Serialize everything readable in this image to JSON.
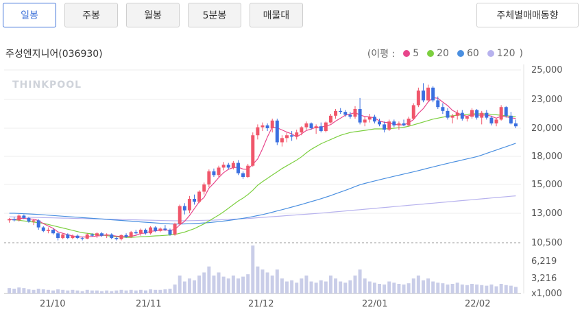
{
  "tabs": [
    {
      "label": "일봉",
      "active": true
    },
    {
      "label": "주봉",
      "active": false
    },
    {
      "label": "월봉",
      "active": false
    },
    {
      "label": "5분봉",
      "active": false
    },
    {
      "label": "매물대",
      "active": false
    }
  ],
  "right_button": "주체별매매동향",
  "stock_title": "주성엔지니어(036930)",
  "legend": {
    "prefix": "(이평 :",
    "suffix": ")",
    "items": [
      {
        "label": "5",
        "color": "#e8458b"
      },
      {
        "label": "20",
        "color": "#7ccf3f"
      },
      {
        "label": "60",
        "color": "#4a8fe0"
      },
      {
        "label": "120",
        "color": "#b7b2ee"
      }
    ]
  },
  "watermark": "THINKPOOL",
  "chart_data": {
    "type": "candlestick",
    "price_axis": {
      "ticks": [
        "25,000",
        "23,000",
        "20,000",
        "18,000",
        "15,000",
        "13,000",
        "10,500"
      ],
      "ylim": [
        10500,
        25000
      ]
    },
    "volume_axis": {
      "ticks": [
        "6,219",
        "3,216",
        "x1,000"
      ]
    },
    "x_ticks": [
      "21/10",
      "21/11",
      "21/12",
      "22/01",
      "22/02"
    ],
    "colors": {
      "up": "#f0566a",
      "down": "#3a6fe0",
      "ma5": "#e8458b",
      "ma20": "#7ccf3f",
      "ma60": "#4a8fe0",
      "ma120": "#b7b2ee",
      "volume": "#c9cde8"
    },
    "candles": [
      [
        12400,
        12600,
        12200,
        12500
      ],
      [
        12500,
        12700,
        12300,
        12400
      ],
      [
        12400,
        12900,
        12300,
        12800
      ],
      [
        12800,
        12900,
        12500,
        12600
      ],
      [
        12600,
        12700,
        12200,
        12300
      ],
      [
        12300,
        12500,
        12000,
        12400
      ],
      [
        12400,
        12500,
        11600,
        11800
      ],
      [
        11800,
        11900,
        11400,
        11500
      ],
      [
        11500,
        11800,
        11300,
        11600
      ],
      [
        11600,
        11700,
        11200,
        11300
      ],
      [
        11300,
        11400,
        10700,
        10900
      ],
      [
        10900,
        11300,
        10800,
        11200
      ],
      [
        11200,
        11300,
        10800,
        10900
      ],
      [
        10900,
        11200,
        10800,
        11100
      ],
      [
        11100,
        11200,
        10800,
        10900
      ],
      [
        10900,
        11000,
        10700,
        10850
      ],
      [
        10850,
        11300,
        10800,
        11200
      ],
      [
        11200,
        11300,
        11000,
        11100
      ],
      [
        11100,
        11400,
        10900,
        11300
      ],
      [
        11300,
        11400,
        11000,
        11100
      ],
      [
        11100,
        11300,
        10900,
        11200
      ],
      [
        11200,
        11300,
        10800,
        10900
      ],
      [
        10900,
        11000,
        10700,
        10800
      ],
      [
        10800,
        11200,
        10700,
        11150
      ],
      [
        11150,
        11300,
        10900,
        11000
      ],
      [
        11000,
        11500,
        10900,
        11400
      ],
      [
        11400,
        11600,
        11200,
        11300
      ],
      [
        11300,
        11700,
        11100,
        11600
      ],
      [
        11600,
        11700,
        11200,
        11300
      ],
      [
        11300,
        11900,
        11200,
        11800
      ],
      [
        11800,
        11900,
        11400,
        11500
      ],
      [
        11500,
        11800,
        11400,
        11700
      ],
      [
        11700,
        12000,
        11500,
        11600
      ],
      [
        11600,
        11700,
        11100,
        11200
      ],
      [
        11200,
        12200,
        11100,
        12100
      ],
      [
        12100,
        13600,
        12000,
        13500
      ],
      [
        13500,
        13700,
        12900,
        13200
      ],
      [
        13200,
        14200,
        13000,
        14000
      ],
      [
        14000,
        14300,
        13600,
        13800
      ],
      [
        13800,
        14600,
        13700,
        14500
      ],
      [
        14500,
        15200,
        14300,
        15000
      ],
      [
        15000,
        16600,
        14800,
        16400
      ],
      [
        16400,
        16700,
        15800,
        16000
      ],
      [
        16000,
        17000,
        15800,
        16800
      ],
      [
        16800,
        17400,
        16500,
        17100
      ],
      [
        17100,
        17300,
        16600,
        16800
      ],
      [
        16800,
        17500,
        16600,
        17300
      ],
      [
        17300,
        17600,
        16000,
        16200
      ],
      [
        16200,
        16400,
        15600,
        15800
      ],
      [
        15800,
        17200,
        15700,
        17000
      ],
      [
        17000,
        19700,
        16900,
        19500
      ],
      [
        19500,
        20400,
        19200,
        20100
      ],
      [
        20100,
        20600,
        19800,
        20300
      ],
      [
        20300,
        20500,
        19800,
        20000
      ],
      [
        20000,
        21000,
        19700,
        20800
      ],
      [
        20800,
        21000,
        18800,
        19000
      ],
      [
        19000,
        19500,
        18700,
        19300
      ],
      [
        19300,
        19700,
        19000,
        19500
      ],
      [
        19500,
        19800,
        19100,
        19400
      ],
      [
        19400,
        19900,
        19200,
        19700
      ],
      [
        19700,
        20200,
        19500,
        20100
      ],
      [
        20100,
        20700,
        19900,
        20500
      ],
      [
        20500,
        20600,
        19900,
        20000
      ],
      [
        20000,
        20400,
        19600,
        20200
      ],
      [
        20200,
        20600,
        19700,
        19800
      ],
      [
        19800,
        20700,
        19700,
        20600
      ],
      [
        20600,
        21500,
        20500,
        21300
      ],
      [
        21300,
        22000,
        21000,
        21800
      ],
      [
        21800,
        22100,
        21500,
        21700
      ],
      [
        21700,
        21900,
        21200,
        21400
      ],
      [
        21400,
        21700,
        21000,
        21200
      ],
      [
        21200,
        22300,
        21000,
        22000
      ],
      [
        22000,
        23100,
        20400,
        20600
      ],
      [
        20600,
        21200,
        20200,
        20900
      ],
      [
        20900,
        21500,
        20600,
        21200
      ],
      [
        21200,
        21400,
        20500,
        20700
      ],
      [
        20700,
        21000,
        20200,
        20400
      ],
      [
        20400,
        20700,
        19700,
        19900
      ],
      [
        19900,
        20900,
        19800,
        20700
      ],
      [
        20700,
        20900,
        20100,
        20300
      ],
      [
        20300,
        20700,
        19900,
        20500
      ],
      [
        20500,
        20900,
        20200,
        20300
      ],
      [
        20300,
        21200,
        20200,
        21000
      ],
      [
        21000,
        22600,
        20900,
        22400
      ],
      [
        22400,
        23800,
        22200,
        23600
      ],
      [
        23600,
        24100,
        22700,
        22900
      ],
      [
        22900,
        24000,
        22700,
        23800
      ],
      [
        23800,
        23900,
        22700,
        22900
      ],
      [
        22900,
        23200,
        22000,
        22200
      ],
      [
        22200,
        22600,
        21500,
        21800
      ],
      [
        21800,
        22100,
        20900,
        21100
      ],
      [
        21100,
        21500,
        20500,
        21300
      ],
      [
        21300,
        21900,
        20900,
        21600
      ],
      [
        21600,
        21900,
        20800,
        21000
      ],
      [
        21000,
        21300,
        20700,
        21200
      ],
      [
        21200,
        22100,
        21000,
        21900
      ],
      [
        21900,
        22000,
        20900,
        21100
      ],
      [
        21100,
        21800,
        20400,
        21600
      ],
      [
        21600,
        21900,
        20900,
        21100
      ],
      [
        21100,
        21300,
        20300,
        20500
      ],
      [
        20500,
        21100,
        20200,
        20900
      ],
      [
        20900,
        22400,
        20800,
        22200
      ],
      [
        22200,
        22300,
        21100,
        21300
      ],
      [
        21300,
        21700,
        20400,
        20500
      ],
      [
        20500,
        20900,
        20000,
        20200
      ]
    ],
    "volume": [
      0.9,
      0.8,
      1.0,
      0.9,
      0.7,
      0.6,
      0.8,
      0.7,
      0.6,
      0.5,
      0.7,
      0.6,
      0.5,
      0.6,
      0.5,
      0.4,
      0.6,
      0.5,
      0.5,
      0.4,
      0.5,
      0.4,
      0.5,
      0.6,
      0.5,
      0.6,
      0.5,
      0.6,
      0.5,
      0.7,
      0.6,
      0.6,
      0.7,
      0.8,
      1.5,
      3.0,
      2.0,
      2.5,
      2.2,
      3.0,
      3.5,
      4.5,
      3.0,
      3.5,
      2.8,
      2.5,
      3.0,
      2.5,
      2.8,
      3.2,
      8.0,
      4.5,
      4.0,
      3.5,
      3.0,
      4.0,
      2.5,
      2.0,
      2.2,
      1.8,
      2.5,
      3.0,
      2.0,
      1.8,
      2.2,
      2.0,
      3.0,
      2.5,
      2.0,
      1.8,
      2.2,
      3.0,
      4.0,
      2.5,
      2.0,
      1.8,
      1.6,
      1.5,
      2.0,
      1.8,
      1.6,
      1.5,
      1.7,
      2.5,
      3.0,
      2.2,
      2.5,
      2.0,
      1.8,
      1.7,
      1.5,
      1.6,
      1.8,
      1.5,
      1.4,
      1.6,
      1.5,
      1.4,
      1.3,
      1.5,
      1.2,
      1.6,
      1.4,
      1.3,
      1.1
    ],
    "ma20": [
      12500,
      12450,
      12400,
      12350,
      12300,
      12250,
      12200,
      12150,
      12050,
      11950,
      11850,
      11750,
      11650,
      11550,
      11450,
      11350,
      11300,
      11250,
      11200,
      11150,
      11100,
      11050,
      11000,
      10980,
      10960,
      10960,
      10980,
      11000,
      11020,
      11050,
      11080,
      11100,
      11130,
      11160,
      11200,
      11300,
      11400,
      11550,
      11700,
      11900,
      12100,
      12350,
      12600,
      12850,
      13100,
      13350,
      13600,
      13850,
      14050,
      14300,
      14600,
      14950,
      15300,
      15650,
      16000,
      16350,
      16700,
      17000,
      17300,
      17600,
      17950,
      18250,
      18500,
      18700,
      18900,
      19050,
      19200,
      19350,
      19500,
      19600,
      19700,
      19750,
      19800,
      19850,
      19900,
      19950,
      19950,
      19950,
      19970,
      20000,
      20050,
      20100,
      20200,
      20350,
      20500,
      20650,
      20800,
      20950,
      21050,
      21150,
      21250,
      21300,
      21350,
      21400,
      21450,
      21500,
      21500,
      21500,
      21500,
      21450,
      21400,
      21350,
      21300,
      21250,
      21200
    ],
    "ma60": [
      13000,
      13000,
      12980,
      12960,
      12940,
      12920,
      12900,
      12870,
      12840,
      12810,
      12780,
      12750,
      12720,
      12690,
      12660,
      12630,
      12600,
      12570,
      12540,
      12510,
      12480,
      12450,
      12420,
      12390,
      12360,
      12330,
      12300,
      12270,
      12240,
      12210,
      12180,
      12150,
      12120,
      12100,
      12090,
      12090,
      12100,
      12110,
      12130,
      12150,
      12180,
      12210,
      12250,
      12290,
      12340,
      12390,
      12450,
      12510,
      12570,
      12640,
      12720,
      12800,
      12890,
      12980,
      13070,
      13160,
      13250,
      13340,
      13430,
      13520,
      13610,
      13710,
      13810,
      13910,
      14010,
      14120,
      14230,
      14350,
      14470,
      14590,
      14720,
      14850,
      14980,
      15110,
      15240,
      15370,
      15500,
      15630,
      15750,
      15870,
      15990,
      16110,
      16230,
      16350,
      16480,
      16610,
      16740,
      16870,
      17000,
      17130,
      17250,
      17370,
      17490,
      17610,
      17730,
      17850,
      17970,
      18090,
      18210,
      18330,
      18450,
      18570,
      18690,
      18810,
      18930
    ],
    "ma120": [
      12700,
      12690,
      12680,
      12670,
      12660,
      12650,
      12640,
      12630,
      12620,
      12610,
      12600,
      12590,
      12580,
      12570,
      12560,
      12550,
      12540,
      12530,
      12520,
      12510,
      12500,
      12490,
      12480,
      12470,
      12460,
      12450,
      12440,
      12430,
      12420,
      12410,
      12400,
      12390,
      12380,
      12370,
      12360,
      12360,
      12360,
      12370,
      12380,
      12390,
      12400,
      12410,
      12420,
      12440,
      12460,
      12480,
      12500,
      12520,
      12540,
      12560,
      12590,
      12620,
      12650,
      12680,
      12710,
      12740,
      12770,
      12800,
      12830,
      12860,
      12890,
      12920,
      12950,
      12980,
      13010,
      13040,
      13070,
      13100,
      13130,
      13160,
      13190,
      13220,
      13250,
      13280,
      13310,
      13340,
      13370,
      13400,
      13430,
      13460,
      13490,
      13520,
      13550,
      13580,
      13610,
      13640,
      13670,
      13700,
      13730,
      13760,
      13790,
      13820,
      13850,
      13880,
      13910,
      13940,
      13970,
      14000,
      14030,
      14060,
      14090,
      14120,
      14150,
      14180,
      14210
    ]
  }
}
